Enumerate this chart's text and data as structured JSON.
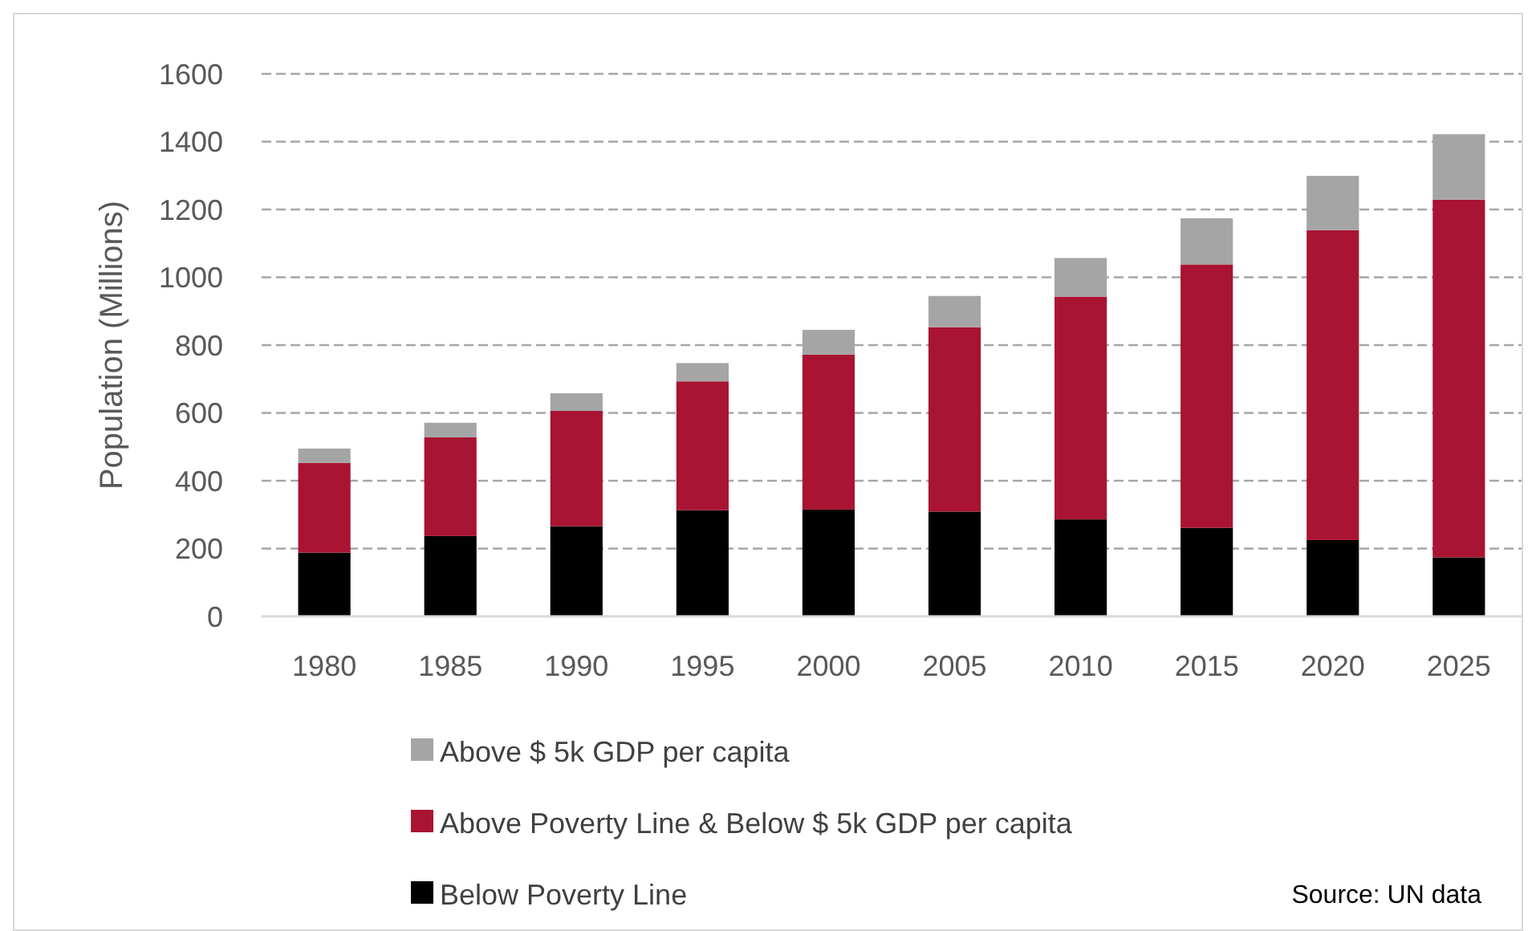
{
  "chart_data": {
    "type": "bar",
    "stacked": true,
    "ylabel": "Population (Millions)",
    "categories": [
      "1980",
      "1985",
      "1990",
      "1995",
      "2000",
      "2005",
      "2010",
      "2015",
      "2020",
      "2025"
    ],
    "series": [
      {
        "name": "Below Poverty Line",
        "color": "#000000",
        "values": [
          188,
          237,
          266,
          313,
          315,
          309,
          286,
          261,
          225,
          174
        ]
      },
      {
        "name": "Above Poverty Line & Below $ 5k GDP per capita",
        "color": "#a91432",
        "values": [
          265,
          291,
          340,
          380,
          457,
          544,
          657,
          777,
          914,
          1055
        ]
      },
      {
        "name": "Above $ 5k GDP per capita",
        "color": "#a5a5a5",
        "values": [
          42,
          43,
          52,
          54,
          73,
          92,
          114,
          136,
          160,
          193
        ]
      }
    ],
    "ylim": [
      0,
      1600
    ],
    "yticks": [
      0,
      200,
      400,
      600,
      800,
      1000,
      1200,
      1400,
      1600
    ],
    "grid": "y",
    "legend": "bottom",
    "annotations": [
      "Source: UN data"
    ]
  }
}
